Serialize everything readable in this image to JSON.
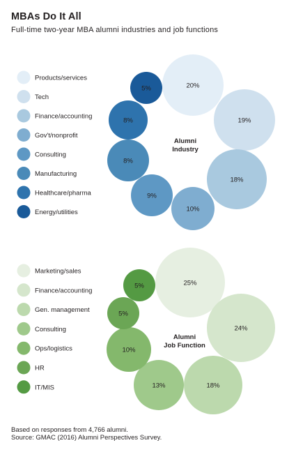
{
  "title": "MBAs Do It All",
  "subtitle": "Full-time two-year MBA alumni industries and job functions",
  "note": "Based on responses from 4,766 alumni.",
  "source": "Source: GMAC (2016) Alumni Perspectives Survey.",
  "chart_data": [
    {
      "type": "bubble",
      "center_label": [
        "Alumni",
        "Industry"
      ],
      "unit": "%",
      "categories": [
        "Products/services",
        "Tech",
        "Finance/accounting",
        "Gov't/nonprofit",
        "Consulting",
        "Manufacturing",
        "Healthcare/pharma",
        "Energy/utilities"
      ],
      "values": [
        20,
        19,
        18,
        10,
        9,
        8,
        8,
        5
      ],
      "colors": [
        "#e3eef7",
        "#cfe0ee",
        "#a9c9df",
        "#7fadd0",
        "#5e98c4",
        "#4a8ab8",
        "#2e73ad",
        "#1a5a99"
      ],
      "legend_colors": [
        "#e3eef7",
        "#cfe0ee",
        "#a9c9df",
        "#7fadd0",
        "#5e98c4",
        "#4a8ab8",
        "#2e73ad",
        "#1a5a99"
      ]
    },
    {
      "type": "bubble",
      "center_label": [
        "Alumni",
        "Job Function"
      ],
      "unit": "%",
      "categories": [
        "Marketing/sales",
        "Finance/accounting",
        "Gen. management",
        "Consulting",
        "Ops/logistics",
        "HR",
        "IT/MIS"
      ],
      "values": [
        25,
        24,
        18,
        13,
        10,
        5,
        5
      ],
      "colors": [
        "#e6efe1",
        "#d5e6cc",
        "#bcd9ad",
        "#9fc98b",
        "#84b86c",
        "#6ba655",
        "#549a43"
      ],
      "legend_colors": [
        "#e6efe1",
        "#d5e6cc",
        "#bcd9ad",
        "#9fc98b",
        "#84b86c",
        "#6ba655",
        "#549a43"
      ]
    }
  ]
}
